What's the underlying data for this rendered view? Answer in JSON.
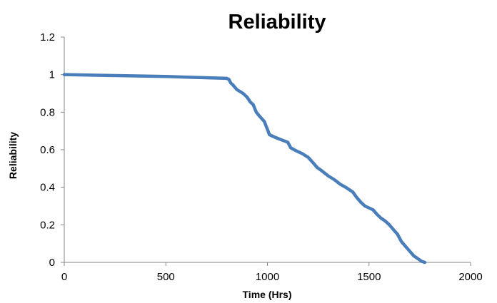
{
  "chart_data": {
    "type": "line",
    "title": "Reliability",
    "xlabel": "Time (Hrs)",
    "ylabel": "Reliability",
    "xlim": [
      0,
      2000
    ],
    "ylim": [
      0,
      1.2
    ],
    "x_ticks": [
      "0",
      "500",
      "1000",
      "1500",
      "2000"
    ],
    "y_ticks": [
      "0",
      "0.2",
      "0.4",
      "0.6",
      "0.8",
      "1",
      "1.2"
    ],
    "grid": false,
    "legend": "none",
    "colors": {
      "series": "#4a7ebb",
      "axis": "#868686"
    },
    "series": [
      {
        "x": [
          0,
          500,
          800,
          810,
          820,
          830,
          850,
          880,
          900,
          915,
          930,
          945,
          960,
          985,
          1010,
          1040,
          1075,
          1100,
          1115,
          1140,
          1170,
          1200,
          1225,
          1245,
          1265,
          1300,
          1330,
          1360,
          1385,
          1420,
          1440,
          1460,
          1480,
          1500,
          1520,
          1540,
          1560,
          1580,
          1600,
          1620,
          1640,
          1660,
          1680,
          1700,
          1720,
          1740,
          1760,
          1775
        ],
        "y": [
          1.0,
          0.99,
          0.98,
          0.975,
          0.955,
          0.945,
          0.92,
          0.9,
          0.88,
          0.855,
          0.84,
          0.8,
          0.78,
          0.75,
          0.68,
          0.665,
          0.65,
          0.64,
          0.61,
          0.595,
          0.58,
          0.56,
          0.53,
          0.505,
          0.49,
          0.46,
          0.44,
          0.415,
          0.4,
          0.375,
          0.345,
          0.32,
          0.3,
          0.29,
          0.28,
          0.255,
          0.235,
          0.22,
          0.2,
          0.175,
          0.15,
          0.11,
          0.085,
          0.06,
          0.035,
          0.02,
          0.005,
          0
        ]
      }
    ]
  }
}
